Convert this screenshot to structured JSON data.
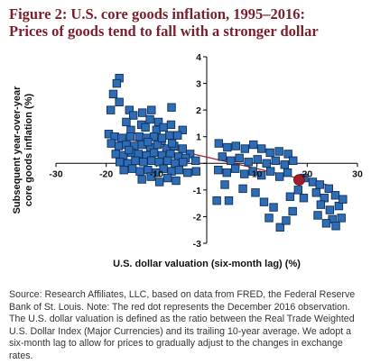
{
  "figure": {
    "title_line1": "Figure 2: U.S. core goods inflation, 1995–2016:",
    "title_line2": "Prices of goods tend to fall with a stronger dollar",
    "source_note": "Source: Research Affiliates, LLC, based on data from FRED, the Federal Reserve Bank of St. Louis. Note: The red dot represents the December 2016 observation. The U.S. dollar valuation is defined as the ratio between the Real Trade Weighted U.S. Dollar Index (Major Currencies) and its trailing 10-year average. We adopt a six-month lag to allow for prices to gradually adjust to the changes in exchange rates."
  },
  "colors": {
    "title": "#7a1f2b",
    "marker_fill": "#2e6db5",
    "marker_stroke": "#0f2f5a",
    "highlight": "#a11d2c",
    "trend": "#a11d2c",
    "axis": "#000000"
  },
  "chart_data": {
    "type": "scatter",
    "title": "",
    "xlabel": "U.S. dollar valuation (six-month lag) (%)",
    "ylabel": "Subsequent year-over-year core goods inflation (%)",
    "ylabel_line1": "Subsequent year-over-year",
    "ylabel_line2": "core goods inflation (%)",
    "xlim": [
      -30,
      30
    ],
    "ylim": [
      -3,
      4
    ],
    "xticks": [
      -30,
      -20,
      -10,
      0,
      10,
      20,
      30
    ],
    "yticks": [
      -3,
      -2,
      -1,
      0,
      1,
      2,
      3,
      4
    ],
    "axes_cross": [
      0,
      0
    ],
    "grid": false,
    "legend": "none",
    "trendline": {
      "x": [
        -20,
        25
      ],
      "y": [
        1.1,
        -0.85
      ]
    },
    "highlight_point": {
      "x": 18.4,
      "y": -0.62,
      "label": "December 2016"
    },
    "series": [
      {
        "points": [
          [
            -17.4,
            3.2
          ],
          [
            -17.9,
            3.0
          ],
          [
            -18.6,
            2.6
          ],
          [
            -17.4,
            2.3
          ],
          [
            -19.1,
            2.0
          ],
          [
            -15.4,
            2.0
          ],
          [
            -14.6,
            1.8
          ],
          [
            -12.8,
            1.9
          ],
          [
            -11.0,
            2.0
          ],
          [
            -7.0,
            2.1
          ],
          [
            -16.0,
            1.55
          ],
          [
            -13.0,
            1.45
          ],
          [
            -11.3,
            1.65
          ],
          [
            -9.6,
            1.55
          ],
          [
            -4.8,
            1.25
          ],
          [
            -15.1,
            1.25
          ],
          [
            -12.2,
            1.35
          ],
          [
            -10.0,
            1.25
          ],
          [
            -8.6,
            1.35
          ],
          [
            -7.1,
            1.45
          ],
          [
            -19.5,
            1.1
          ],
          [
            -18.3,
            1.0
          ],
          [
            -16.9,
            0.95
          ],
          [
            -15.2,
            1.0
          ],
          [
            -13.4,
            1.0
          ],
          [
            -12.0,
            0.95
          ],
          [
            -10.5,
            1.0
          ],
          [
            -9.0,
            0.85
          ],
          [
            -7.4,
            1.05
          ],
          [
            -5.8,
            1.05
          ],
          [
            -19.0,
            0.75
          ],
          [
            -17.5,
            0.65
          ],
          [
            -16.0,
            0.7
          ],
          [
            -14.4,
            0.65
          ],
          [
            -12.9,
            0.7
          ],
          [
            -11.2,
            0.6
          ],
          [
            -9.8,
            0.7
          ],
          [
            -8.0,
            0.55
          ],
          [
            -6.5,
            0.65
          ],
          [
            -4.8,
            0.55
          ],
          [
            -3.3,
            0.35
          ],
          [
            -18.1,
            0.35
          ],
          [
            -16.6,
            0.3
          ],
          [
            -15.0,
            0.4
          ],
          [
            -13.6,
            0.35
          ],
          [
            -12.0,
            0.3
          ],
          [
            -10.5,
            0.4
          ],
          [
            -8.9,
            0.3
          ],
          [
            -7.2,
            0.35
          ],
          [
            -5.6,
            0.25
          ],
          [
            -4.2,
            0.2
          ],
          [
            -2.2,
            0.1
          ],
          [
            -17.3,
            0.05
          ],
          [
            -15.7,
            0.0
          ],
          [
            -14.2,
            0.1
          ],
          [
            -12.6,
            0.05
          ],
          [
            -11.0,
            0.1
          ],
          [
            -9.5,
            0.05
          ],
          [
            -7.8,
            0.1
          ],
          [
            -6.3,
            0.0
          ],
          [
            -4.7,
            0.05
          ],
          [
            -16.5,
            -0.25
          ],
          [
            -14.8,
            -0.2
          ],
          [
            -13.3,
            -0.3
          ],
          [
            -11.7,
            -0.25
          ],
          [
            -10.1,
            -0.35
          ],
          [
            -8.6,
            -0.2
          ],
          [
            -7.0,
            -0.3
          ],
          [
            -5.5,
            -0.25
          ],
          [
            -3.8,
            -0.35
          ],
          [
            -12.9,
            -0.6
          ],
          [
            -11.1,
            -0.5
          ],
          [
            -9.4,
            -0.7
          ],
          [
            -7.8,
            -0.55
          ],
          [
            -6.1,
            -0.65
          ],
          [
            -2.1,
            -0.3
          ],
          [
            -8.9,
            0.95
          ],
          [
            -15.5,
            0.5
          ],
          [
            -11.7,
            0.8
          ],
          [
            -6.9,
            0.75
          ],
          [
            2.4,
            0.75
          ],
          [
            4.1,
            0.6
          ],
          [
            5.8,
            0.65
          ],
          [
            7.6,
            0.55
          ],
          [
            9.3,
            0.7
          ],
          [
            10.9,
            0.55
          ],
          [
            12.6,
            0.4
          ],
          [
            14.4,
            0.45
          ],
          [
            16.2,
            0.35
          ],
          [
            3.1,
            0.25
          ],
          [
            4.8,
            0.1
          ],
          [
            6.5,
            0.2
          ],
          [
            8.3,
            0.05
          ],
          [
            10.1,
            0.15
          ],
          [
            11.9,
            0.0
          ],
          [
            13.7,
            0.1
          ],
          [
            15.5,
            -0.05
          ],
          [
            17.2,
            0.1
          ],
          [
            2.3,
            -0.25
          ],
          [
            4.0,
            -0.35
          ],
          [
            5.7,
            -0.2
          ],
          [
            7.5,
            -0.4
          ],
          [
            9.2,
            -0.3
          ],
          [
            10.9,
            -0.45
          ],
          [
            12.7,
            -0.3
          ],
          [
            14.5,
            -0.5
          ],
          [
            16.1,
            -0.35
          ],
          [
            19.4,
            -0.55
          ],
          [
            21.1,
            -0.7
          ],
          [
            22.5,
            -0.8
          ],
          [
            24.3,
            -0.95
          ],
          [
            21.8,
            -1.1
          ],
          [
            23.4,
            -1.3
          ],
          [
            25.6,
            -1.2
          ],
          [
            22.7,
            -1.55
          ],
          [
            24.5,
            -1.75
          ],
          [
            26.3,
            -1.6
          ],
          [
            25.0,
            -2.1
          ],
          [
            26.8,
            -2.05
          ],
          [
            23.8,
            -2.25
          ],
          [
            25.7,
            -2.35
          ],
          [
            22.1,
            -1.95
          ],
          [
            27.1,
            -1.35
          ],
          [
            19.3,
            -1.3
          ],
          [
            16.6,
            -1.25
          ],
          [
            2.0,
            -1.4
          ],
          [
            4.4,
            -1.4
          ],
          [
            11.4,
            -1.45
          ],
          [
            13.3,
            -1.65
          ],
          [
            12.4,
            -2.05
          ],
          [
            14.6,
            -2.4
          ],
          [
            15.8,
            -2.15
          ],
          [
            17.1,
            -1.8
          ],
          [
            9.7,
            -1.1
          ],
          [
            7.2,
            -0.95
          ],
          [
            3.6,
            -0.8
          ],
          [
            18.2,
            -1.0
          ]
        ]
      }
    ]
  }
}
